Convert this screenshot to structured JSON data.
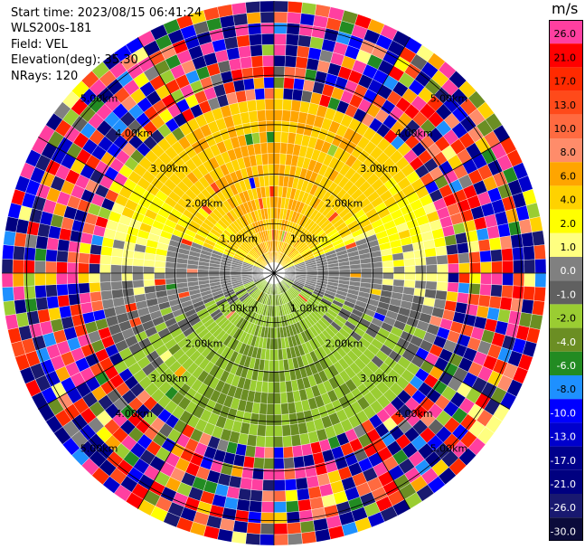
{
  "header": {
    "start_time": "Start time: 2023/08/15 06:41:24",
    "site": "WLS200s-181",
    "field": "Field: VEL",
    "elevation": "Elevation(deg): 35.30",
    "nrays": "NRays: 120"
  },
  "colorbar": {
    "unit": "m/s",
    "bins": [
      {
        "label": "26.0",
        "color": "#ff3fa0"
      },
      {
        "label": "21.0",
        "color": "#ff0000"
      },
      {
        "label": "17.0",
        "color": "#ff2a00"
      },
      {
        "label": "13.0",
        "color": "#ff4a1a"
      },
      {
        "label": "10.0",
        "color": "#ff6a40"
      },
      {
        "label": "8.0",
        "color": "#ff8c6a"
      },
      {
        "label": "6.0",
        "color": "#ffa500"
      },
      {
        "label": "4.0",
        "color": "#ffd200"
      },
      {
        "label": "2.0",
        "color": "#ffff00"
      },
      {
        "label": "1.0",
        "color": "#ffff80"
      },
      {
        "label": "0.0",
        "color": "#808080"
      },
      {
        "label": "-1.0",
        "color": "#606060"
      },
      {
        "label": "-2.0",
        "color": "#9acd32"
      },
      {
        "label": "-4.0",
        "color": "#6b8e23"
      },
      {
        "label": "-6.0",
        "color": "#228b22"
      },
      {
        "label": "-8.0",
        "color": "#1e90ff"
      },
      {
        "label": "-10.0",
        "color": "#0000ff"
      },
      {
        "label": "-13.0",
        "color": "#0000cd"
      },
      {
        "label": "-17.0",
        "color": "#00008b"
      },
      {
        "label": "-21.0",
        "color": "#000080"
      },
      {
        "label": "-26.0",
        "color": "#191970"
      },
      {
        "label": "-30.0",
        "color": "#0b0b3b"
      }
    ]
  },
  "chart_data": {
    "type": "heatmap",
    "projection": "polar PPI",
    "range_rings_km": [
      1,
      2,
      3,
      4,
      5
    ],
    "ring_labels": [
      "1.00km",
      "2.00km",
      "3.00km",
      "4.00km",
      "5.00km"
    ],
    "max_range_km": 5.5,
    "azimuth_lines_deg": [
      0,
      30,
      60,
      90,
      120,
      150,
      180,
      210,
      240,
      270,
      300,
      330
    ],
    "nrays": 120,
    "ngates": 25,
    "sectors": [
      {
        "region": "north, 0.4-3.0 km",
        "velocity_ms": [
          1,
          6
        ]
      },
      {
        "region": "east/west band, 0.2-1.8 km",
        "velocity_ms": [
          -1,
          0
        ]
      },
      {
        "region": "south, 0.4-3.6 km",
        "velocity_ms": [
          -8,
          -2
        ]
      },
      {
        "region": "beyond 3.5 km (noise)",
        "velocity_ms": [
          -30,
          26
        ]
      }
    ]
  }
}
